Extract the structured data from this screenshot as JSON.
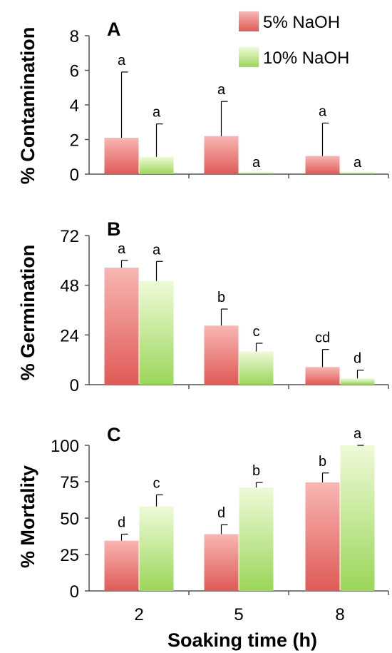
{
  "chart_data": [
    {
      "panel": "A",
      "type": "bar",
      "ylabel": "% Contamination",
      "ylim": [
        0,
        8
      ],
      "yticks": [
        0,
        2,
        4,
        6,
        8
      ],
      "categories": [
        "2",
        "5",
        "8"
      ],
      "series": [
        {
          "name": "5% NaOH",
          "color": "#e8706c",
          "values": [
            2.1,
            2.2,
            1.05
          ],
          "errors": [
            3.8,
            2.0,
            1.9
          ],
          "letters": [
            "a",
            "a",
            "a"
          ]
        },
        {
          "name": "10% NaOH",
          "color": "#a6dc63",
          "values": [
            1.0,
            0.0,
            0.0
          ],
          "errors": [
            1.9,
            0.0,
            0.0
          ],
          "letters": [
            "a",
            "a",
            "a"
          ]
        }
      ]
    },
    {
      "panel": "B",
      "type": "bar",
      "ylabel": "% Germination",
      "ylim": [
        0,
        72
      ],
      "yticks": [
        0,
        24,
        48,
        72
      ],
      "categories": [
        "2",
        "5",
        "8"
      ],
      "series": [
        {
          "name": "5% NaOH",
          "color": "#e8706c",
          "values": [
            56.5,
            28.5,
            8.5
          ],
          "errors": [
            3.5,
            8.0,
            8.5
          ],
          "letters": [
            "a",
            "b",
            "cd"
          ]
        },
        {
          "name": "10% NaOH",
          "color": "#a6dc63",
          "values": [
            50.0,
            16.0,
            3.0
          ],
          "errors": [
            9.5,
            4.0,
            4.0
          ],
          "letters": [
            "a",
            "c",
            "d"
          ]
        }
      ]
    },
    {
      "panel": "C",
      "type": "bar",
      "ylabel": "% Mortality",
      "xlabel": "Soaking time (h)",
      "ylim": [
        0,
        100
      ],
      "yticks": [
        0,
        25,
        50,
        75,
        100
      ],
      "categories": [
        "2",
        "5",
        "8"
      ],
      "series": [
        {
          "name": "5% NaOH",
          "color": "#e8706c",
          "values": [
            34.5,
            39.0,
            74.5
          ],
          "errors": [
            4.5,
            6.5,
            6.5
          ],
          "letters": [
            "d",
            "d",
            "b"
          ]
        },
        {
          "name": "10% NaOH",
          "color": "#a6dc63",
          "values": [
            58.0,
            71.0,
            100.0
          ],
          "errors": [
            8.0,
            3.5,
            0.0
          ],
          "letters": [
            "c",
            "b",
            "a"
          ]
        }
      ]
    }
  ],
  "legend": {
    "position": "top-right",
    "entries": [
      "5% NaOH",
      "10% NaOH"
    ]
  }
}
